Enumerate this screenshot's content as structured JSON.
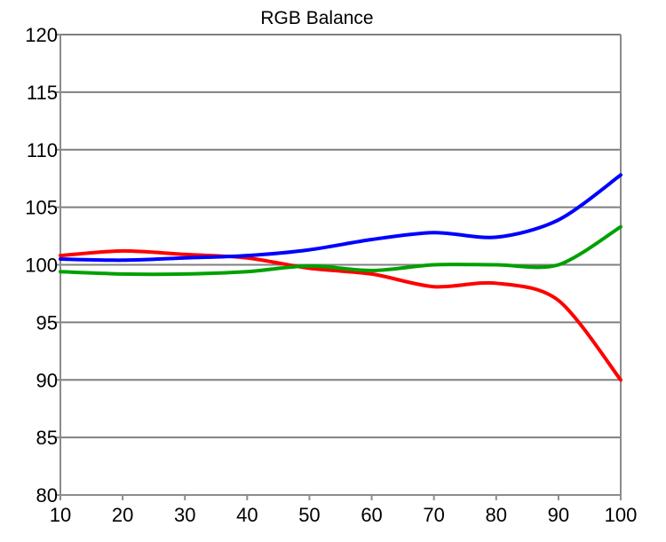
{
  "chart_data": {
    "type": "line",
    "title": "RGB Balance",
    "xlabel": "",
    "ylabel": "",
    "x": [
      10,
      20,
      30,
      40,
      50,
      60,
      70,
      80,
      90,
      100
    ],
    "xticks": [
      "10",
      "20",
      "30",
      "40",
      "50",
      "60",
      "70",
      "80",
      "90",
      "100"
    ],
    "ylim": [
      80,
      120
    ],
    "yticks": [
      "80",
      "85",
      "90",
      "95",
      "100",
      "105",
      "110",
      "115",
      "120"
    ],
    "grid": "horizontal",
    "legend": "none",
    "series": [
      {
        "color": "#ff0000",
        "values": [
          100.8,
          101.2,
          100.9,
          100.6,
          99.7,
          99.2,
          98.1,
          98.4,
          96.9,
          90.0
        ]
      },
      {
        "color": "#00a000",
        "values": [
          99.4,
          99.2,
          99.2,
          99.4,
          99.9,
          99.5,
          100.0,
          100.0,
          100.0,
          103.3
        ]
      },
      {
        "color": "#0000ff",
        "values": [
          100.5,
          100.4,
          100.6,
          100.8,
          101.3,
          102.2,
          102.8,
          102.4,
          103.9,
          107.8
        ]
      }
    ]
  }
}
